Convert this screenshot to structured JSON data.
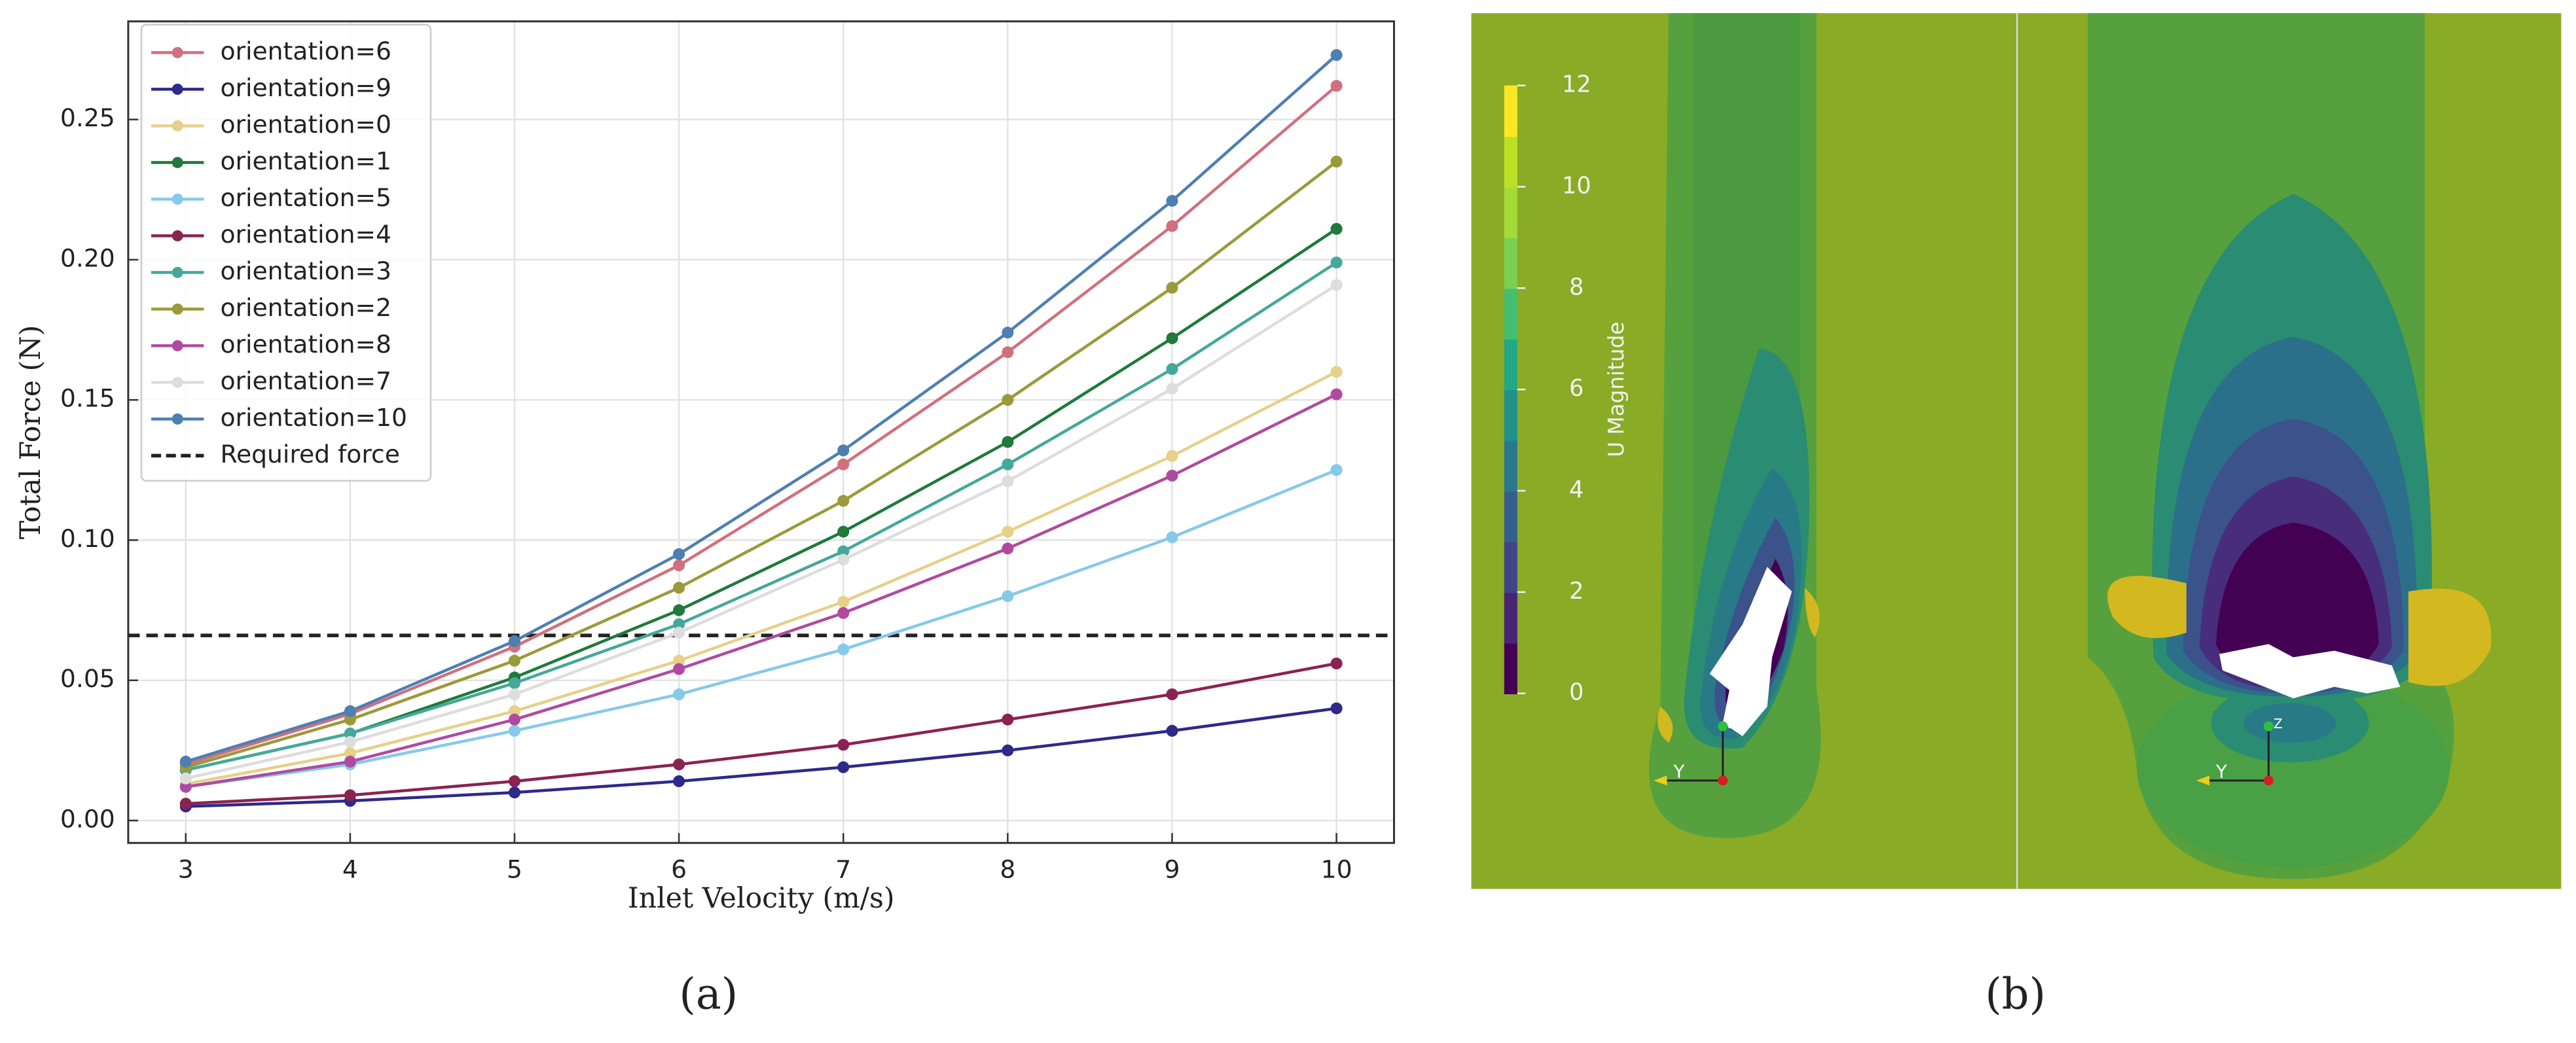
{
  "chart_data": {
    "type": "line",
    "x_label": "Inlet Velocity (m/s)",
    "y_label": "Total Force (N)",
    "x": [
      3,
      4,
      5,
      6,
      7,
      8,
      9,
      10
    ],
    "series": [
      {
        "name": "orientation=6",
        "color": "#d0707f",
        "values": [
          0.02,
          0.038,
          0.062,
          0.091,
          0.127,
          0.167,
          0.212,
          0.262
        ]
      },
      {
        "name": "orientation=9",
        "color": "#2e2a8a",
        "values": [
          0.005,
          0.007,
          0.01,
          0.014,
          0.019,
          0.025,
          0.032,
          0.04
        ]
      },
      {
        "name": "orientation=0",
        "color": "#e6d08a",
        "values": [
          0.013,
          0.024,
          0.039,
          0.057,
          0.078,
          0.103,
          0.13,
          0.16
        ]
      },
      {
        "name": "orientation=1",
        "color": "#1f7a3c",
        "values": [
          0.018,
          0.031,
          0.051,
          0.075,
          0.103,
          0.135,
          0.172,
          0.211
        ]
      },
      {
        "name": "orientation=5",
        "color": "#86c9ea",
        "values": [
          0.012,
          0.02,
          0.032,
          0.045,
          0.061,
          0.08,
          0.101,
          0.125
        ]
      },
      {
        "name": "orientation=4",
        "color": "#8a2352",
        "values": [
          0.006,
          0.009,
          0.014,
          0.02,
          0.027,
          0.036,
          0.045,
          0.056
        ]
      },
      {
        "name": "orientation=3",
        "color": "#45a89a",
        "values": [
          0.018,
          0.031,
          0.049,
          0.07,
          0.096,
          0.127,
          0.161,
          0.199
        ]
      },
      {
        "name": "orientation=2",
        "color": "#9b9a3a",
        "values": [
          0.019,
          0.036,
          0.057,
          0.083,
          0.114,
          0.15,
          0.19,
          0.235
        ]
      },
      {
        "name": "orientation=8",
        "color": "#b04aa0",
        "values": [
          0.012,
          0.021,
          0.036,
          0.054,
          0.074,
          0.097,
          0.123,
          0.152
        ]
      },
      {
        "name": "orientation=7",
        "color": "#dddddd",
        "values": [
          0.015,
          0.028,
          0.045,
          0.067,
          0.093,
          0.121,
          0.154,
          0.191
        ]
      },
      {
        "name": "orientation=10",
        "color": "#4e7fb3",
        "values": [
          0.021,
          0.039,
          0.064,
          0.095,
          0.132,
          0.174,
          0.221,
          0.273
        ]
      }
    ],
    "hlines": [
      {
        "name": "Required force",
        "value": 0.066,
        "color": "#222222"
      }
    ],
    "xlim": [
      2.65,
      10.35
    ],
    "xticks": [
      3,
      4,
      5,
      6,
      7,
      8,
      9,
      10
    ],
    "ylim": [
      -0.008,
      0.285
    ],
    "yticks": [
      {
        "value": 0,
        "label": "0.00"
      },
      0.05,
      {
        "value": 0.1,
        "label": "0.10"
      },
      0.15,
      {
        "value": 0.2,
        "label": "0.20"
      },
      0.25
    ],
    "grid": true,
    "legend": "upper left"
  },
  "figure": {
    "panel_labels": [
      "(a)",
      "(b)"
    ],
    "colorbar": {
      "label": "U Magnitude",
      "lim": [
        0,
        12
      ],
      "ticks": [
        0,
        2,
        4,
        6,
        8,
        10,
        12
      ]
    },
    "contour_panels": [
      {
        "axes": [
          "Y",
          "Z"
        ]
      },
      {
        "axes": [
          "Y",
          "Z"
        ]
      }
    ]
  }
}
